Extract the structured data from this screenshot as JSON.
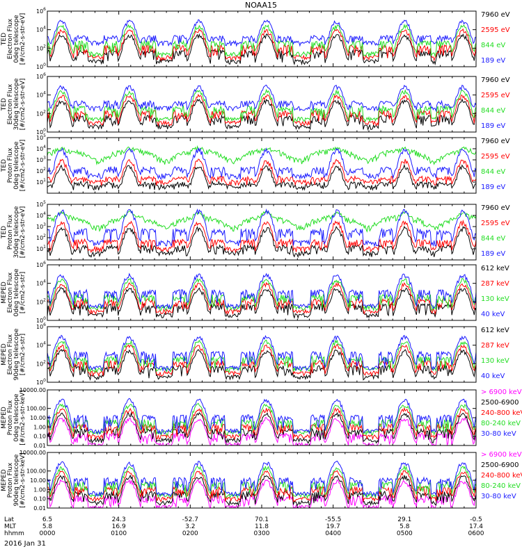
{
  "title": "NOAA15",
  "date_label": "2016 Jan 31",
  "xaxis": {
    "row_labels": [
      "Lat",
      "MLT",
      "hhmm"
    ],
    "ticks": [
      {
        "lat": "6.5",
        "mlt": "5.8",
        "hhmm": "0000"
      },
      {
        "lat": "24.3",
        "mlt": "16.9",
        "hhmm": "0100"
      },
      {
        "lat": "-52.7",
        "mlt": "3.2",
        "hhmm": "0200"
      },
      {
        "lat": "70.1",
        "mlt": "11.8",
        "hhmm": "0300"
      },
      {
        "lat": "-55.5",
        "mlt": "19.7",
        "hhmm": "0400"
      },
      {
        "lat": "29.1",
        "mlt": "5.8",
        "hhmm": "0500"
      },
      {
        "lat": "-0.5",
        "mlt": "17.4",
        "hhmm": "0600"
      }
    ]
  },
  "colors": {
    "blue": "#1a1aff",
    "red": "#ff0000",
    "green": "#22dd22",
    "black": "#000000",
    "magenta": "#ff00ff"
  },
  "chart_data": [
    {
      "type": "line",
      "scale": "log",
      "ylim": [
        1,
        1000000
      ],
      "ylabel": [
        "TED",
        "Electron Flux",
        "0deg telescope",
        "[#/cm2-s-str-eV]"
      ],
      "yticks": [
        {
          "value": 1,
          "label": "10^0"
        },
        {
          "value": 100,
          "label": "10^2"
        },
        {
          "value": 10000,
          "label": "10^4"
        },
        {
          "value": 1000000,
          "label": "10^6"
        }
      ],
      "series": [
        {
          "name": "7960 eV",
          "color": "black"
        },
        {
          "name": "2595 eV",
          "color": "red"
        },
        {
          "name": "844 eV",
          "color": "green"
        },
        {
          "name": "189 eV",
          "color": "blue"
        }
      ],
      "peak_times_hhmm": [
        "0012",
        "0109",
        "0207",
        "0304",
        "0403",
        "0500",
        "0549"
      ],
      "peak_flux": 100000
    },
    {
      "type": "line",
      "scale": "log",
      "ylim": [
        1,
        1000000
      ],
      "ylabel": [
        "TED",
        "Electron Flux",
        "30deg telescope",
        "[#/cm2-s-str-eV]"
      ],
      "yticks": [
        {
          "value": 1,
          "label": "10^0"
        },
        {
          "value": 100,
          "label": "10^2"
        },
        {
          "value": 10000,
          "label": "10^4"
        },
        {
          "value": 1000000,
          "label": "10^6"
        }
      ],
      "series": [
        {
          "name": "7960 eV",
          "color": "black"
        },
        {
          "name": "2595 eV",
          "color": "red"
        },
        {
          "name": "844 eV",
          "color": "green"
        },
        {
          "name": "189 eV",
          "color": "blue"
        }
      ],
      "peak_times_hhmm": [
        "0012",
        "0109",
        "0207",
        "0304",
        "0403",
        "0500",
        "0549"
      ],
      "peak_flux": 100000
    },
    {
      "type": "line",
      "scale": "log",
      "ylim": [
        1,
        100000
      ],
      "ylabel": [
        "TED",
        "Proton Flux",
        "0deg telescope",
        "[#/cm2-s-str-eV]"
      ],
      "yticks": [
        {
          "value": 10,
          "label": "10^1"
        },
        {
          "value": 100,
          "label": "10^2"
        },
        {
          "value": 1000,
          "label": "10^3"
        },
        {
          "value": 10000,
          "label": "10^4"
        },
        {
          "value": 100000,
          "label": "10^5"
        }
      ],
      "series": [
        {
          "name": "7960 eV",
          "color": "black"
        },
        {
          "name": "2595 eV",
          "color": "red"
        },
        {
          "name": "844 eV",
          "color": "green"
        },
        {
          "name": "189 eV",
          "color": "blue"
        }
      ],
      "peak_times_hhmm": [
        "0012",
        "0109",
        "0207",
        "0304",
        "0403",
        "0500",
        "0549"
      ],
      "peak_flux": 10000
    },
    {
      "type": "line",
      "scale": "log",
      "ylim": [
        1,
        100000
      ],
      "ylabel": [
        "TED",
        "Proton Flux",
        "30deg telescope",
        "[#/cm2-s-str-eV]"
      ],
      "yticks": [
        {
          "value": 10,
          "label": "10^1"
        },
        {
          "value": 100,
          "label": "10^2"
        },
        {
          "value": 1000,
          "label": "10^3"
        },
        {
          "value": 10000,
          "label": "10^4"
        },
        {
          "value": 100000,
          "label": "10^5"
        }
      ],
      "series": [
        {
          "name": "7960 eV",
          "color": "black"
        },
        {
          "name": "2595 eV",
          "color": "red"
        },
        {
          "name": "844 eV",
          "color": "green"
        },
        {
          "name": "189 eV",
          "color": "blue"
        }
      ],
      "peak_times_hhmm": [
        "0012",
        "0109",
        "0207",
        "0304",
        "0403",
        "0500",
        "0549"
      ],
      "peak_flux": 30000
    },
    {
      "type": "line",
      "scale": "log",
      "ylim": [
        1,
        1000000
      ],
      "ylabel": [
        "MEPED",
        "Electron Flux",
        "0deg telescope",
        "[#/cm2-s-str]"
      ],
      "yticks": [
        {
          "value": 1,
          "label": "10^0"
        },
        {
          "value": 100,
          "label": "10^2"
        },
        {
          "value": 10000,
          "label": "10^4"
        },
        {
          "value": 1000000,
          "label": "10^6"
        }
      ],
      "series": [
        {
          "name": "612 keV",
          "color": "black"
        },
        {
          "name": "287 keV",
          "color": "red"
        },
        {
          "name": "130 keV",
          "color": "green"
        },
        {
          "name": "40 keV",
          "color": "blue"
        }
      ],
      "peak_times_hhmm": [
        "0012",
        "0109",
        "0207",
        "0304",
        "0403",
        "0500",
        "0549"
      ],
      "peak_flux": 100000
    },
    {
      "type": "line",
      "scale": "log",
      "ylim": [
        1,
        1000000
      ],
      "ylabel": [
        "MEPED",
        "Electron Flux",
        "90deg telescope",
        "[#/cm2-s-str]"
      ],
      "yticks": [
        {
          "value": 1,
          "label": "10^0"
        },
        {
          "value": 100,
          "label": "10^2"
        },
        {
          "value": 10000,
          "label": "10^4"
        },
        {
          "value": 1000000,
          "label": "10^6"
        }
      ],
      "series": [
        {
          "name": "612 keV",
          "color": "black"
        },
        {
          "name": "287 keV",
          "color": "red"
        },
        {
          "name": "130 keV",
          "color": "green"
        },
        {
          "name": "40 keV",
          "color": "blue"
        }
      ],
      "peak_times_hhmm": [
        "0012",
        "0109",
        "0207",
        "0304",
        "0403",
        "0500",
        "0549"
      ],
      "peak_flux": 100000
    },
    {
      "type": "line",
      "scale": "log",
      "ylim": [
        0.01,
        10000
      ],
      "ylabel": [
        "MEPED",
        "Proton Flux",
        "0deg telescope",
        "[#/cm2-s-str-keV]"
      ],
      "yticks": [
        {
          "value": 0.01,
          "label": "0.01"
        },
        {
          "value": 0.1,
          "label": "0.10"
        },
        {
          "value": 1,
          "label": "1.00"
        },
        {
          "value": 10,
          "label": "10.00"
        },
        {
          "value": 100,
          "label": "100.00"
        },
        {
          "value": 10000,
          "label": "10000.00"
        }
      ],
      "series": [
        {
          "name": "> 6900 keV",
          "color": "magenta"
        },
        {
          "name": "2500-6900",
          "color": "black"
        },
        {
          "name": "240-800 keV",
          "color": "red"
        },
        {
          "name": "80-240 keV",
          "color": "green"
        },
        {
          "name": "30-80 keV",
          "color": "blue"
        }
      ],
      "peak_times_hhmm": [
        "0012",
        "0109",
        "0207",
        "0304",
        "0403",
        "0500",
        "0549"
      ],
      "peak_flux": 1000
    },
    {
      "type": "line",
      "scale": "log",
      "ylim": [
        0.01,
        10000
      ],
      "ylabel": [
        "MEPED",
        "Proton Flux",
        "90deg telescope",
        "[#/cm2-s-str-keV]"
      ],
      "yticks": [
        {
          "value": 0.01,
          "label": "0.01"
        },
        {
          "value": 0.1,
          "label": "0.10"
        },
        {
          "value": 1,
          "label": "1.00"
        },
        {
          "value": 10,
          "label": "10.00"
        },
        {
          "value": 100,
          "label": "100.00"
        },
        {
          "value": 10000,
          "label": "10000.00"
        }
      ],
      "series": [
        {
          "name": "> 6900 keV",
          "color": "magenta"
        },
        {
          "name": "2500-6900",
          "color": "black"
        },
        {
          "name": "240-800 keV",
          "color": "red"
        },
        {
          "name": "80-240 keV",
          "color": "green"
        },
        {
          "name": "30-80 keV",
          "color": "blue"
        }
      ],
      "peak_times_hhmm": [
        "0012",
        "0109",
        "0207",
        "0304",
        "0403",
        "0500",
        "0549"
      ],
      "peak_flux": 1000
    }
  ]
}
